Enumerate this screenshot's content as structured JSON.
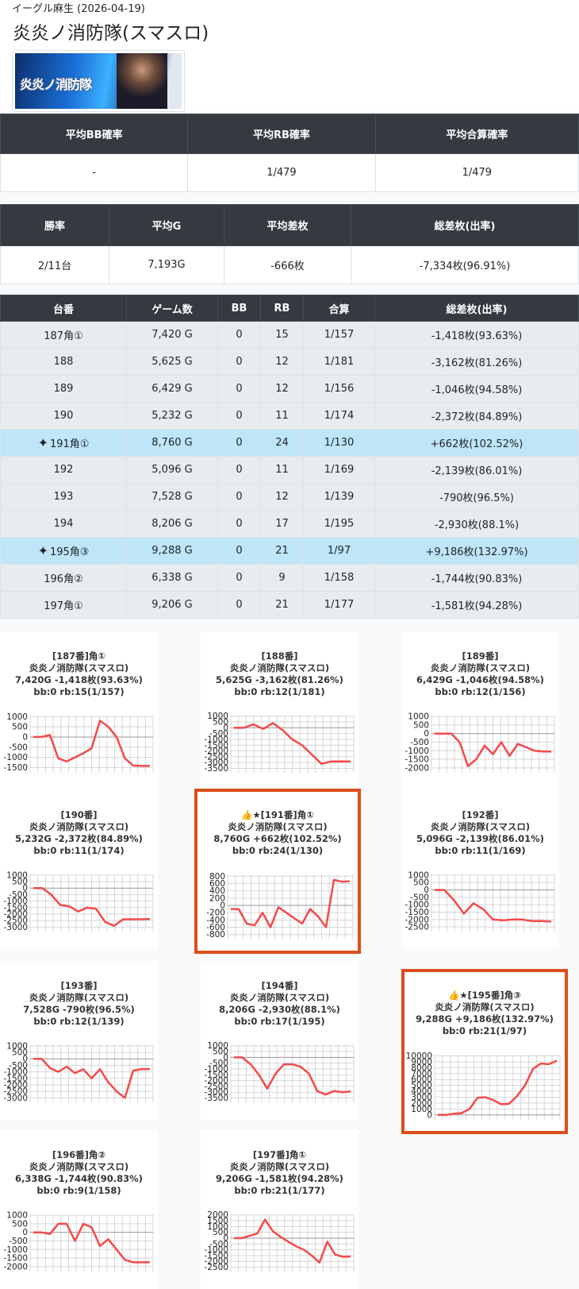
{
  "header": {
    "location": "イーグル麻生 (2026-04-19)",
    "title": "炎炎ノ消防隊(スマスロ)",
    "banner_text": "炎炎ノ消防隊"
  },
  "summary1": {
    "headers": [
      "平均BB確率",
      "平均RB確率",
      "平均合算確率"
    ],
    "values": [
      "-",
      "1/479",
      "1/479"
    ]
  },
  "summary2": {
    "headers": [
      "勝率",
      "平均G",
      "平均差枚",
      "総差枚(出率)"
    ],
    "values": [
      "2/11台",
      "7,193G",
      "-666枚",
      "-7,334枚(96.91%)"
    ]
  },
  "machines": {
    "headers": [
      "台番",
      "ゲーム数",
      "BB",
      "RB",
      "合算",
      "総差枚(出率)"
    ],
    "rows": [
      {
        "no": "187角①",
        "games": "7,420 G",
        "bb": "0",
        "rb": "15",
        "total": "1/157",
        "diff": "-1,418枚(93.63%)",
        "hl": false
      },
      {
        "no": "188",
        "games": "5,625 G",
        "bb": "0",
        "rb": "12",
        "total": "1/181",
        "diff": "-3,162枚(81.26%)",
        "hl": false
      },
      {
        "no": "189",
        "games": "6,429 G",
        "bb": "0",
        "rb": "12",
        "total": "1/156",
        "diff": "-1,046枚(94.58%)",
        "hl": false
      },
      {
        "no": "190",
        "games": "5,232 G",
        "bb": "0",
        "rb": "11",
        "total": "1/174",
        "diff": "-2,372枚(84.89%)",
        "hl": false
      },
      {
        "no": "191角①",
        "games": "8,760 G",
        "bb": "0",
        "rb": "24",
        "total": "1/130",
        "diff": "+662枚(102.52%)",
        "hl": true
      },
      {
        "no": "192",
        "games": "5,096 G",
        "bb": "0",
        "rb": "11",
        "total": "1/169",
        "diff": "-2,139枚(86.01%)",
        "hl": false
      },
      {
        "no": "193",
        "games": "7,528 G",
        "bb": "0",
        "rb": "12",
        "total": "1/139",
        "diff": "-790枚(96.5%)",
        "hl": false
      },
      {
        "no": "194",
        "games": "8,206 G",
        "bb": "0",
        "rb": "17",
        "total": "1/195",
        "diff": "-2,930枚(88.1%)",
        "hl": false
      },
      {
        "no": "195角③",
        "games": "9,288 G",
        "bb": "0",
        "rb": "21",
        "total": "1/97",
        "diff": "+9,186枚(132.97%)",
        "hl": true
      },
      {
        "no": "196角②",
        "games": "6,338 G",
        "bb": "0",
        "rb": "9",
        "total": "1/158",
        "diff": "-1,744枚(90.83%)",
        "hl": false
      },
      {
        "no": "197角①",
        "games": "9,206 G",
        "bb": "0",
        "rb": "21",
        "total": "1/177",
        "diff": "-1,581枚(94.28%)",
        "hl": false
      }
    ]
  },
  "colors": {
    "line": "#f44a4a",
    "highlight_border": "#dc4e1b",
    "highlight_row": "#bee5f8"
  },
  "chart_data": [
    {
      "type": "line",
      "title": "[187番]角①",
      "subtitle": "炎炎ノ消防隊(スマスロ)",
      "line2": "7,420G -1,418枚(93.63%)",
      "line3": "bb:0 rb:15(1/157)",
      "yticks": [
        1000,
        500,
        0,
        -500,
        -1000,
        -1500
      ],
      "ylim": [
        -1600,
        1050
      ],
      "values": [
        0,
        0,
        100,
        -1050,
        -1200,
        -1000,
        -800,
        -550,
        800,
        500,
        0,
        -1050,
        -1400,
        -1420,
        -1420
      ]
    },
    {
      "type": "line",
      "title": "[188番]",
      "subtitle": "炎炎ノ消防隊(スマスロ)",
      "line2": "5,625G -3,162枚(81.26%)",
      "line3": "bb:0 rb:12(1/181)",
      "yticks": [
        1000,
        500,
        0,
        -500,
        -1000,
        -1500,
        -2000,
        -2500,
        -3000,
        -3500
      ],
      "ylim": [
        -3600,
        1050
      ],
      "values": [
        0,
        0,
        300,
        -100,
        400,
        -200,
        -1000,
        -1500,
        -2300,
        -3100,
        -2900,
        -2900,
        -2900
      ]
    },
    {
      "type": "line",
      "title": "[189番]",
      "subtitle": "炎炎ノ消防隊(スマスロ)",
      "line2": "6,429G -1,046枚(94.58%)",
      "line3": "bb:0 rb:12(1/156)",
      "yticks": [
        1000,
        500,
        0,
        -500,
        -1000,
        -1500,
        -2000
      ],
      "ylim": [
        -2100,
        1050
      ],
      "values": [
        0,
        0,
        0,
        -500,
        -1900,
        -1500,
        -700,
        -1200,
        -500,
        -1300,
        -600,
        -800,
        -1000,
        -1050,
        -1046
      ]
    },
    {
      "type": "line",
      "title": "[190番]",
      "subtitle": "炎炎ノ消防隊(スマスロ)",
      "line2": "5,232G -2,372枚(84.89%)",
      "line3": "bb:0 rb:11(1/174)",
      "yticks": [
        1000,
        500,
        0,
        -500,
        -1000,
        -1500,
        -2000,
        -2500,
        -3000
      ],
      "ylim": [
        -3100,
        1050
      ],
      "values": [
        0,
        0,
        -500,
        -1300,
        -1400,
        -1800,
        -1500,
        -1600,
        -2600,
        -2900,
        -2400,
        -2400,
        -2400,
        -2372
      ]
    },
    {
      "type": "line",
      "title": "👍★[191番]角①",
      "subtitle": "炎炎ノ消防隊(スマスロ)",
      "line2": "8,760G +662枚(102.52%)",
      "line3": "bb:0 rb:24(1/130)",
      "yticks": [
        800,
        600,
        400,
        200,
        0,
        -200,
        -400,
        -600,
        -800
      ],
      "ylim": [
        -850,
        850
      ],
      "values": [
        -100,
        -100,
        -500,
        -550,
        -200,
        -600,
        -50,
        -200,
        -350,
        -500,
        -100,
        -300,
        -600,
        700,
        650,
        662
      ]
    },
    {
      "type": "line",
      "title": "[192番]",
      "subtitle": "炎炎ノ消防隊(スマスロ)",
      "line2": "5,096G -2,139枚(86.01%)",
      "line3": "bb:0 rb:11(1/169)",
      "yticks": [
        1000,
        500,
        0,
        -500,
        -1000,
        -1500,
        -2000,
        -2500
      ],
      "ylim": [
        -2600,
        1050
      ],
      "values": [
        0,
        0,
        -700,
        -1600,
        -900,
        -1300,
        -2000,
        -2050,
        -2000,
        -2000,
        -2100,
        -2100,
        -2139
      ]
    },
    {
      "type": "line",
      "title": "[193番]",
      "subtitle": "炎炎ノ消防隊(スマスロ)",
      "line2": "7,528G -790枚(96.5%)",
      "line3": "bb:0 rb:12(1/139)",
      "yticks": [
        1000,
        500,
        0,
        -500,
        -1000,
        -1500,
        -2000,
        -2500,
        -3000
      ],
      "ylim": [
        -3100,
        1050
      ],
      "values": [
        0,
        0,
        -700,
        -1000,
        -600,
        -1100,
        -800,
        -1500,
        -800,
        -1800,
        -2500,
        -3000,
        -900,
        -790,
        -790
      ]
    },
    {
      "type": "line",
      "title": "[194番]",
      "subtitle": "炎炎ノ消防隊(スマスロ)",
      "line2": "8,206G -2,930枚(88.1%)",
      "line3": "bb:0 rb:17(1/195)",
      "yticks": [
        1000,
        500,
        0,
        -500,
        -1000,
        -1500,
        -2000,
        -2500,
        -3000,
        -3500
      ],
      "ylim": [
        -3600,
        1050
      ],
      "values": [
        0,
        0,
        -600,
        -1500,
        -2700,
        -1400,
        -600,
        -600,
        -800,
        -1400,
        -2900,
        -3200,
        -2900,
        -3000,
        -2930
      ]
    },
    {
      "type": "line",
      "title": "👍★[195番]角③",
      "subtitle": "炎炎ノ消防隊(スマスロ)",
      "line2": "9,288G +9,186枚(132.97%)",
      "line3": "bb:0 rb:21(1/97)",
      "yticks": [
        10000,
        9000,
        8000,
        7000,
        6000,
        5000,
        4000,
        3000,
        2000,
        1000,
        0
      ],
      "ylim": [
        -300,
        10200
      ],
      "values": [
        0,
        0,
        200,
        300,
        1000,
        2900,
        3000,
        2500,
        1800,
        1900,
        3200,
        5000,
        7800,
        8700,
        8600,
        9186
      ]
    },
    {
      "type": "line",
      "title": "[196番]角②",
      "subtitle": "炎炎ノ消防隊(スマスロ)",
      "line2": "6,338G -1,744枚(90.83%)",
      "line3": "bb:0 rb:9(1/158)",
      "yticks": [
        1000,
        500,
        0,
        -500,
        -1000,
        -1500,
        -2000
      ],
      "ylim": [
        -2100,
        1050
      ],
      "values": [
        0,
        0,
        -100,
        500,
        500,
        -500,
        500,
        300,
        -800,
        -400,
        -1000,
        -1600,
        -1750,
        -1750,
        -1744
      ]
    },
    {
      "type": "line",
      "title": "[197番]角①",
      "subtitle": "炎炎ノ消防隊(スマスロ)",
      "line2": "9,206G -1,581枚(94.28%)",
      "line3": "bb:0 rb:21(1/177)",
      "yticks": [
        2000,
        1500,
        1000,
        500,
        0,
        -500,
        -1000,
        -1500,
        -2000,
        -2500
      ],
      "ylim": [
        -2600,
        2050
      ],
      "values": [
        0,
        0,
        200,
        400,
        1600,
        600,
        100,
        -300,
        -700,
        -1000,
        -1500,
        -2100,
        -300,
        -1400,
        -1600,
        -1581
      ]
    }
  ]
}
